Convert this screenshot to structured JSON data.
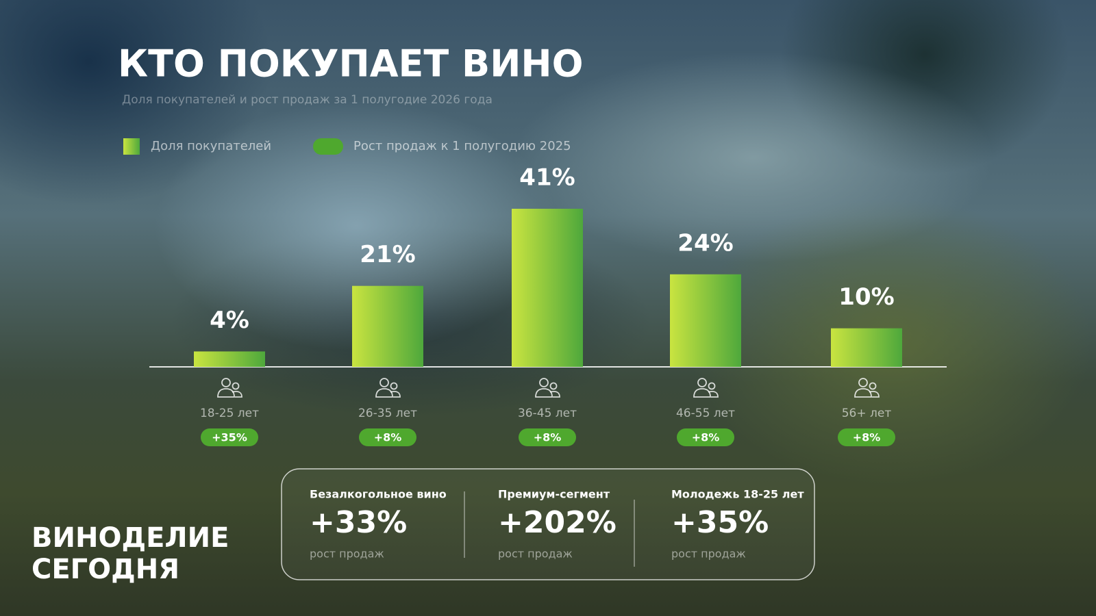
{
  "chart_data": {
    "type": "bar",
    "title": "КТО ПОКУПАЕТ ВИНО",
    "subtitle": "Доля покупателей и рост продаж за 1 полугодие 2026 года",
    "categories": [
      "18-25 лет",
      "26-35 лет",
      "36-45 лет",
      "46-55 лет",
      "56+ лет"
    ],
    "series": [
      {
        "name": "Доля покупателей",
        "color": [
          "#c9e440",
          "#4ea83c"
        ],
        "values": [
          4,
          21,
          41,
          24,
          10
        ],
        "value_labels": [
          "4%",
          "21%",
          "41%",
          "24%",
          "10%"
        ]
      },
      {
        "name": "Рост продаж к 1 полугодию 2025",
        "color": "#4fa82e",
        "values": [
          35,
          8,
          8,
          8,
          8
        ],
        "value_labels": [
          "+35%",
          "+8%",
          "+8%",
          "+8%",
          "+8%"
        ]
      }
    ]
  },
  "stats": [
    {
      "label": "Безалкогольное вино",
      "value": "+33%",
      "caption": "рост продаж"
    },
    {
      "label": "Премиум-сегмент",
      "value": "+202%",
      "caption": "рост продаж"
    },
    {
      "label": "Молодежь 18-25 лет",
      "value": "+35%",
      "caption": "рост продаж"
    }
  ],
  "brand": [
    "ВИНОДЕЛИЕ",
    "СЕГОДНЯ"
  ]
}
